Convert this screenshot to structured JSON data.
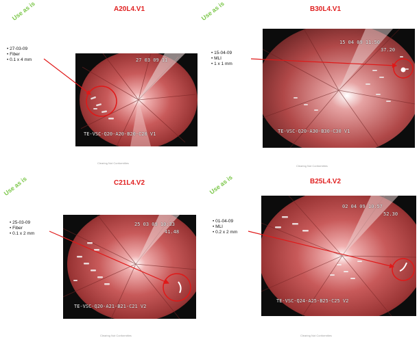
{
  "stamp_text": "Use as is",
  "caption_text": "Clearing Not Conformities",
  "panels": {
    "a": {
      "title": "A20L4.V1",
      "notes": [
        "27-03-09",
        "Fiber",
        "0.1 x 4 mm"
      ],
      "osd_time": "27 03 09 11",
      "osd_label": "TE-VSC-Q20-A20-B20-C20 V1"
    },
    "b": {
      "title": "B30L4.V1",
      "notes": [
        "15-04-09",
        "MLI",
        "1 x 1 mm"
      ],
      "osd_time": "15 04 09 11:50",
      "osd_sub": "37.20",
      "osd_label": "TE-VSC-Q20-A30-B30-C30 V1"
    },
    "c": {
      "title": "C21L4.V2",
      "notes": [
        "25-03-09",
        "Fiber",
        "0.1 x 2 mm"
      ],
      "osd_time": "25 03 09 10:33",
      "osd_sub": "41.48",
      "osd_label": "TE-VSC-Q20-A21-B21-C21 V2"
    },
    "d": {
      "title": "B25L4.V2",
      "notes": [
        "01-04-09",
        "MLI",
        "0.2 x 2 mm"
      ],
      "osd_time": "02 04 09 10:57",
      "osd_sub": "52.30",
      "osd_label": "TE-VSC-Q24-A25-B25-C25 V2"
    }
  }
}
